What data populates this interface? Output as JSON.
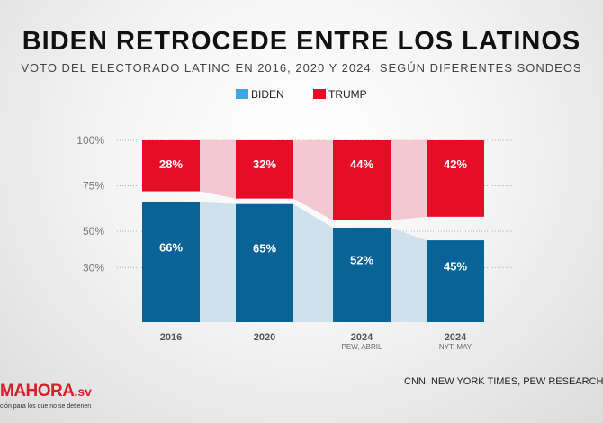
{
  "title": "BIDEN RETROCEDE ENTRE LOS LATINOS",
  "subtitle": "VOTO DEL ELECTORADO LATINO EN 2016, 2020 Y 2024, SEGÚN DIFERENTES SONDEOS",
  "source": "CNN, NEW YORK TIMES, PEW RESEARCH/EL",
  "logo": {
    "word": "MAHORA",
    "suffix": ".sv",
    "tagline": "ción para los que no se detienen"
  },
  "colors": {
    "biden": "#0a6396",
    "trump": "#e60d26",
    "biden_band": "#cfe2ec",
    "trump_band": "#f3c8d3"
  },
  "chart_data": {
    "type": "bar",
    "stacking": "top-and-bottom aligned",
    "categories": [
      "2016",
      "2020",
      "2024",
      "2024"
    ],
    "category_sublabels": [
      "",
      "",
      "PEW, ABRIL",
      "NYT, MAY"
    ],
    "series": [
      {
        "name": "BIDEN",
        "values": [
          66,
          65,
          52,
          45
        ],
        "labels": [
          "66%",
          "65%",
          "52%",
          "45%"
        ]
      },
      {
        "name": "TRUMP",
        "values": [
          28,
          32,
          44,
          42
        ],
        "labels": [
          "28%",
          "32%",
          "44%",
          "42%"
        ]
      }
    ],
    "y_ticks": [
      100,
      75,
      50,
      30
    ],
    "y_tick_labels": [
      "100%",
      "75%",
      "50%",
      "30%"
    ],
    "ylim": [
      0,
      100
    ],
    "grid": true,
    "legend": "top-center"
  }
}
